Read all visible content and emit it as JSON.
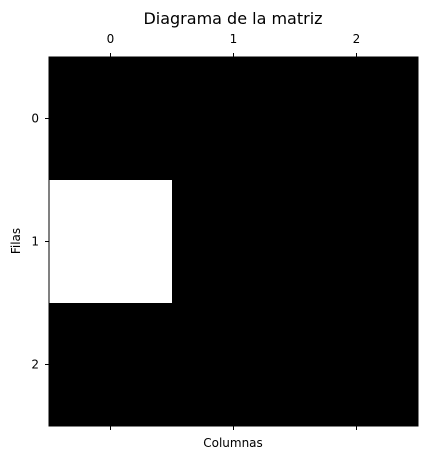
{
  "chart_data": {
    "type": "heatmap",
    "title": "Diagrama de la matriz",
    "xlabel": "Columnas",
    "ylabel": "Filas",
    "x_tick_labels": [
      "0",
      "1",
      "2"
    ],
    "y_tick_labels": [
      "0",
      "1",
      "2"
    ],
    "x_ticks_position": "top",
    "matrix": [
      [
        0,
        0,
        0
      ],
      [
        1,
        0,
        0
      ],
      [
        0,
        0,
        0
      ]
    ],
    "colormap": {
      "0": "#000000",
      "1": "#ffffff"
    },
    "grid": false
  }
}
